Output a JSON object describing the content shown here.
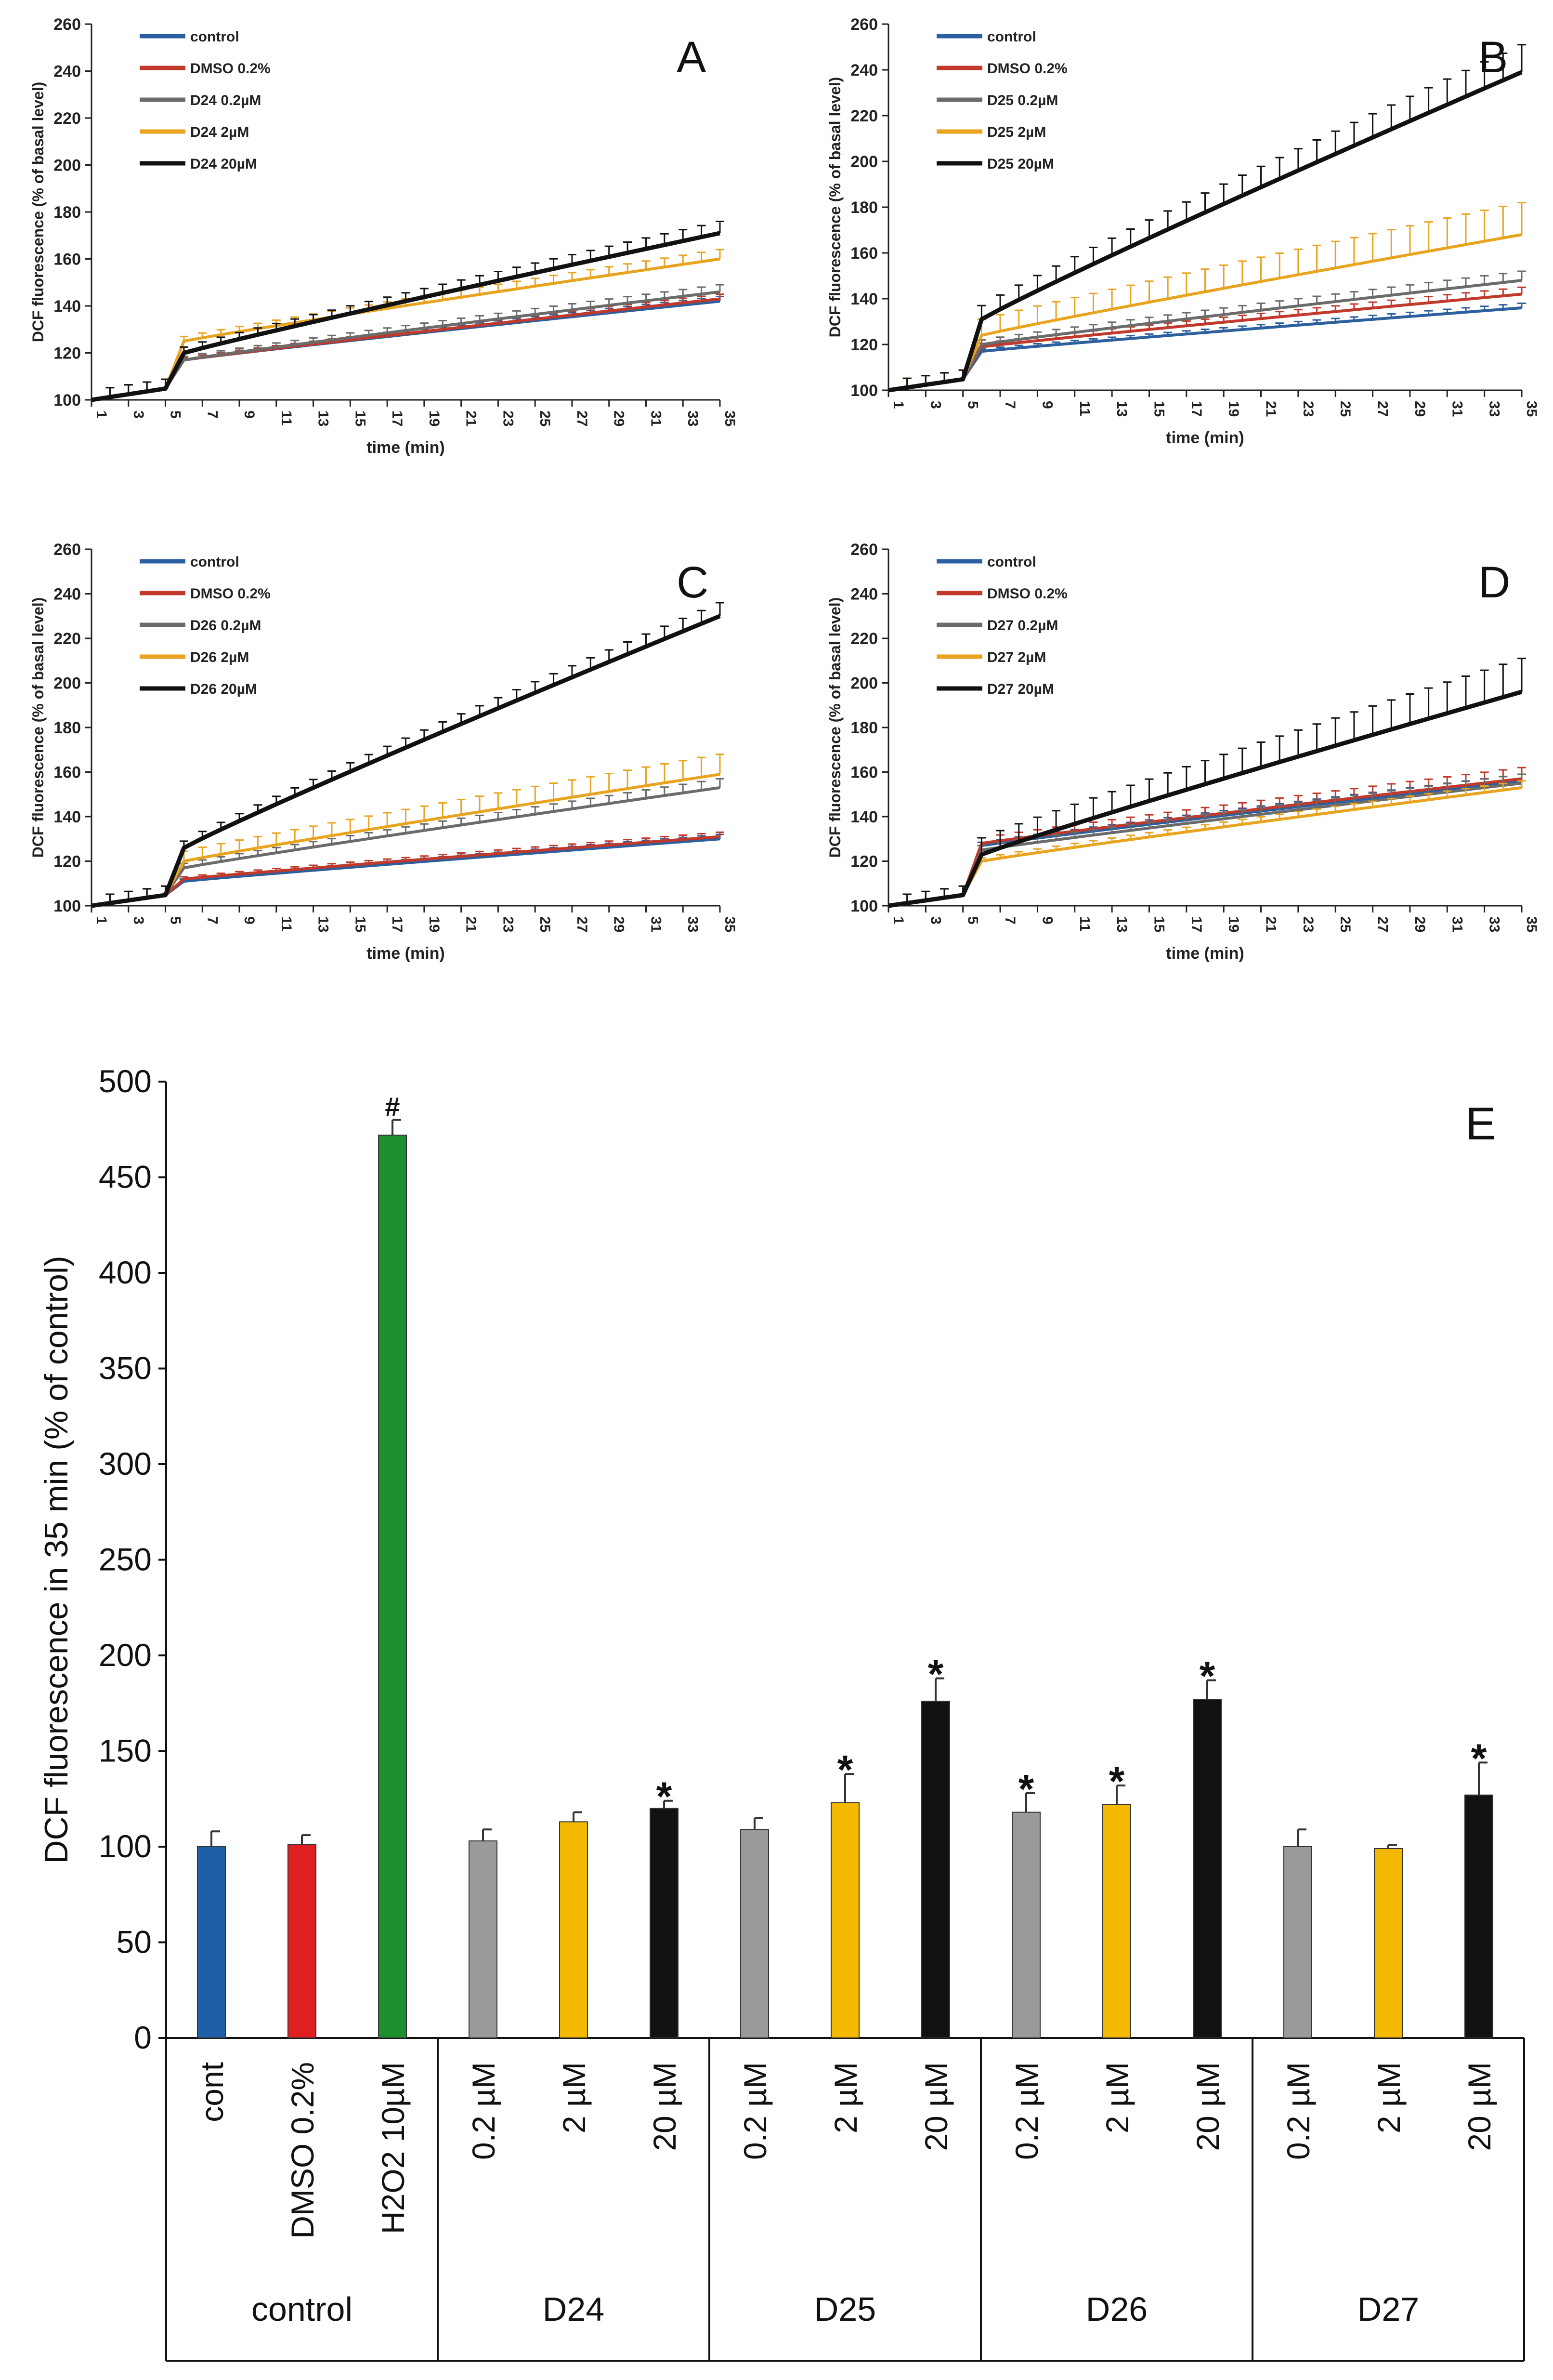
{
  "chart_data": [
    {
      "panel": "A",
      "type": "line",
      "xlabel": "time (min)",
      "ylabel": "DCF fluorescence (% of basal level)",
      "xlim": [
        1,
        35
      ],
      "ylim": [
        100,
        260
      ],
      "xticks": [
        1,
        3,
        5,
        7,
        9,
        11,
        13,
        15,
        17,
        19,
        21,
        23,
        25,
        27,
        29,
        31,
        33,
        35
      ],
      "yticks": [
        100,
        120,
        140,
        160,
        180,
        200,
        220,
        240,
        260
      ],
      "legend_position": "top-left",
      "series": [
        {
          "name": "control",
          "color": "#2c5f9e",
          "jump": 117,
          "end": 142,
          "err": 2
        },
        {
          "name": "DMSO 0.2%",
          "color": "#c0392b",
          "jump": 117,
          "end": 143,
          "err": 2
        },
        {
          "name": "D24 0.2µM",
          "color": "#6b6b6b",
          "jump": 117,
          "end": 146,
          "err": 3
        },
        {
          "name": "D24 2µM",
          "color": "#e8a31f",
          "jump": 125,
          "end": 160,
          "err": 4
        },
        {
          "name": "D24 20µM",
          "color": "#111111",
          "jump": 120,
          "end": 171,
          "err": 5
        }
      ]
    },
    {
      "panel": "B",
      "type": "line",
      "xlabel": "time (min)",
      "ylabel": "DCF fluorescence (% of basal level)",
      "xlim": [
        1,
        35
      ],
      "ylim": [
        100,
        260
      ],
      "xticks": [
        1,
        3,
        5,
        7,
        9,
        11,
        13,
        15,
        17,
        19,
        21,
        23,
        25,
        27,
        29,
        31,
        33,
        35
      ],
      "yticks": [
        100,
        120,
        140,
        160,
        180,
        200,
        220,
        240,
        260
      ],
      "legend_position": "top-left",
      "series": [
        {
          "name": "control",
          "color": "#2c5f9e",
          "jump": 117,
          "end": 136,
          "err": 2
        },
        {
          "name": "DMSO 0.2%",
          "color": "#c0392b",
          "jump": 119,
          "end": 142,
          "err": 3
        },
        {
          "name": "D25 0.2µM",
          "color": "#6b6b6b",
          "jump": 120,
          "end": 148,
          "err": 4
        },
        {
          "name": "D25 2µM",
          "color": "#e8a31f",
          "jump": 124,
          "end": 168,
          "err": 14
        },
        {
          "name": "D25 20µM",
          "color": "#111111",
          "jump": 131,
          "end": 239,
          "err": 12
        }
      ]
    },
    {
      "panel": "C",
      "type": "line",
      "xlabel": "time (min)",
      "ylabel": "DCF fluorescence (% of basal level)",
      "xlim": [
        1,
        35
      ],
      "ylim": [
        100,
        260
      ],
      "xticks": [
        1,
        3,
        5,
        7,
        9,
        11,
        13,
        15,
        17,
        19,
        21,
        23,
        25,
        27,
        29,
        31,
        33,
        35
      ],
      "yticks": [
        100,
        120,
        140,
        160,
        180,
        200,
        220,
        240,
        260
      ],
      "legend_position": "top-left",
      "series": [
        {
          "name": "control",
          "color": "#2c5f9e",
          "jump": 111,
          "end": 130,
          "err": 2
        },
        {
          "name": "DMSO 0.2%",
          "color": "#c0392b",
          "jump": 112,
          "end": 131,
          "err": 2
        },
        {
          "name": "D26 0.2µM",
          "color": "#6b6b6b",
          "jump": 117,
          "end": 153,
          "err": 4
        },
        {
          "name": "D26 2µM",
          "color": "#e8a31f",
          "jump": 120,
          "end": 159,
          "err": 9
        },
        {
          "name": "D26 20µM",
          "color": "#111111",
          "jump": 126,
          "end": 230,
          "err": 6
        }
      ]
    },
    {
      "panel": "D",
      "type": "line",
      "xlabel": "time (min)",
      "ylabel": "DCF fluorescence (% of basal level)",
      "xlim": [
        1,
        35
      ],
      "ylim": [
        100,
        260
      ],
      "xticks": [
        1,
        3,
        5,
        7,
        9,
        11,
        13,
        15,
        17,
        19,
        21,
        23,
        25,
        27,
        29,
        31,
        33,
        35
      ],
      "yticks": [
        100,
        120,
        140,
        160,
        180,
        200,
        220,
        240,
        260
      ],
      "legend_position": "top-left",
      "series": [
        {
          "name": "control",
          "color": "#2c5f9e",
          "jump": 127,
          "end": 156,
          "err": 3
        },
        {
          "name": "DMSO 0.2%",
          "color": "#c0392b",
          "jump": 128,
          "end": 157,
          "err": 5
        },
        {
          "name": "D27 0.2µM",
          "color": "#6b6b6b",
          "jump": 125,
          "end": 155,
          "err": 4
        },
        {
          "name": "D27 2µM",
          "color": "#e8a31f",
          "jump": 120,
          "end": 153,
          "err": 3
        },
        {
          "name": "D27 20µM",
          "color": "#111111",
          "jump": 123,
          "end": 196,
          "err": 15
        }
      ]
    },
    {
      "panel": "E",
      "type": "bar",
      "ylabel": "DCF fluorescence in 35 min (% of control)",
      "ylim": [
        0,
        500
      ],
      "yticks": [
        0,
        50,
        100,
        150,
        200,
        250,
        300,
        350,
        400,
        450,
        500
      ],
      "bars": [
        {
          "label": "cont",
          "group": "control",
          "value": 100,
          "err": 8,
          "color": "#1f5fa8",
          "mark": ""
        },
        {
          "label": "DMSO 0.2%",
          "group": "control",
          "value": 101,
          "err": 5,
          "color": "#e02020",
          "mark": ""
        },
        {
          "label": "H2O2 10µM",
          "group": "control",
          "value": 472,
          "err": 8,
          "color": "#1e8f2e",
          "mark": "#"
        },
        {
          "label": "0.2 µM",
          "group": "D24",
          "value": 103,
          "err": 6,
          "color": "#9a9a9a",
          "mark": ""
        },
        {
          "label": "2 µM",
          "group": "D24",
          "value": 113,
          "err": 5,
          "color": "#f5b800",
          "mark": ""
        },
        {
          "label": "20 µM",
          "group": "D24",
          "value": 120,
          "err": 4,
          "color": "#111111",
          "mark": "*"
        },
        {
          "label": "0.2 µM",
          "group": "D25",
          "value": 109,
          "err": 6,
          "color": "#9a9a9a",
          "mark": ""
        },
        {
          "label": "2 µM",
          "group": "D25",
          "value": 123,
          "err": 15,
          "color": "#f5b800",
          "mark": "*"
        },
        {
          "label": "20 µM",
          "group": "D25",
          "value": 176,
          "err": 12,
          "color": "#111111",
          "mark": "*"
        },
        {
          "label": "0.2 µM",
          "group": "D26",
          "value": 118,
          "err": 10,
          "color": "#9a9a9a",
          "mark": "*"
        },
        {
          "label": "2 µM",
          "group": "D26",
          "value": 122,
          "err": 10,
          "color": "#f5b800",
          "mark": "*"
        },
        {
          "label": "20 µM",
          "group": "D26",
          "value": 177,
          "err": 10,
          "color": "#111111",
          "mark": "*"
        },
        {
          "label": "0.2 µM",
          "group": "D27",
          "value": 100,
          "err": 9,
          "color": "#9a9a9a",
          "mark": ""
        },
        {
          "label": "2 µM",
          "group": "D27",
          "value": 99,
          "err": 2,
          "color": "#f5b800",
          "mark": ""
        },
        {
          "label": "20 µM",
          "group": "D27",
          "value": 127,
          "err": 17,
          "color": "#111111",
          "mark": "*"
        }
      ],
      "groups": [
        "control",
        "D24",
        "D25",
        "D26",
        "D27"
      ]
    }
  ]
}
